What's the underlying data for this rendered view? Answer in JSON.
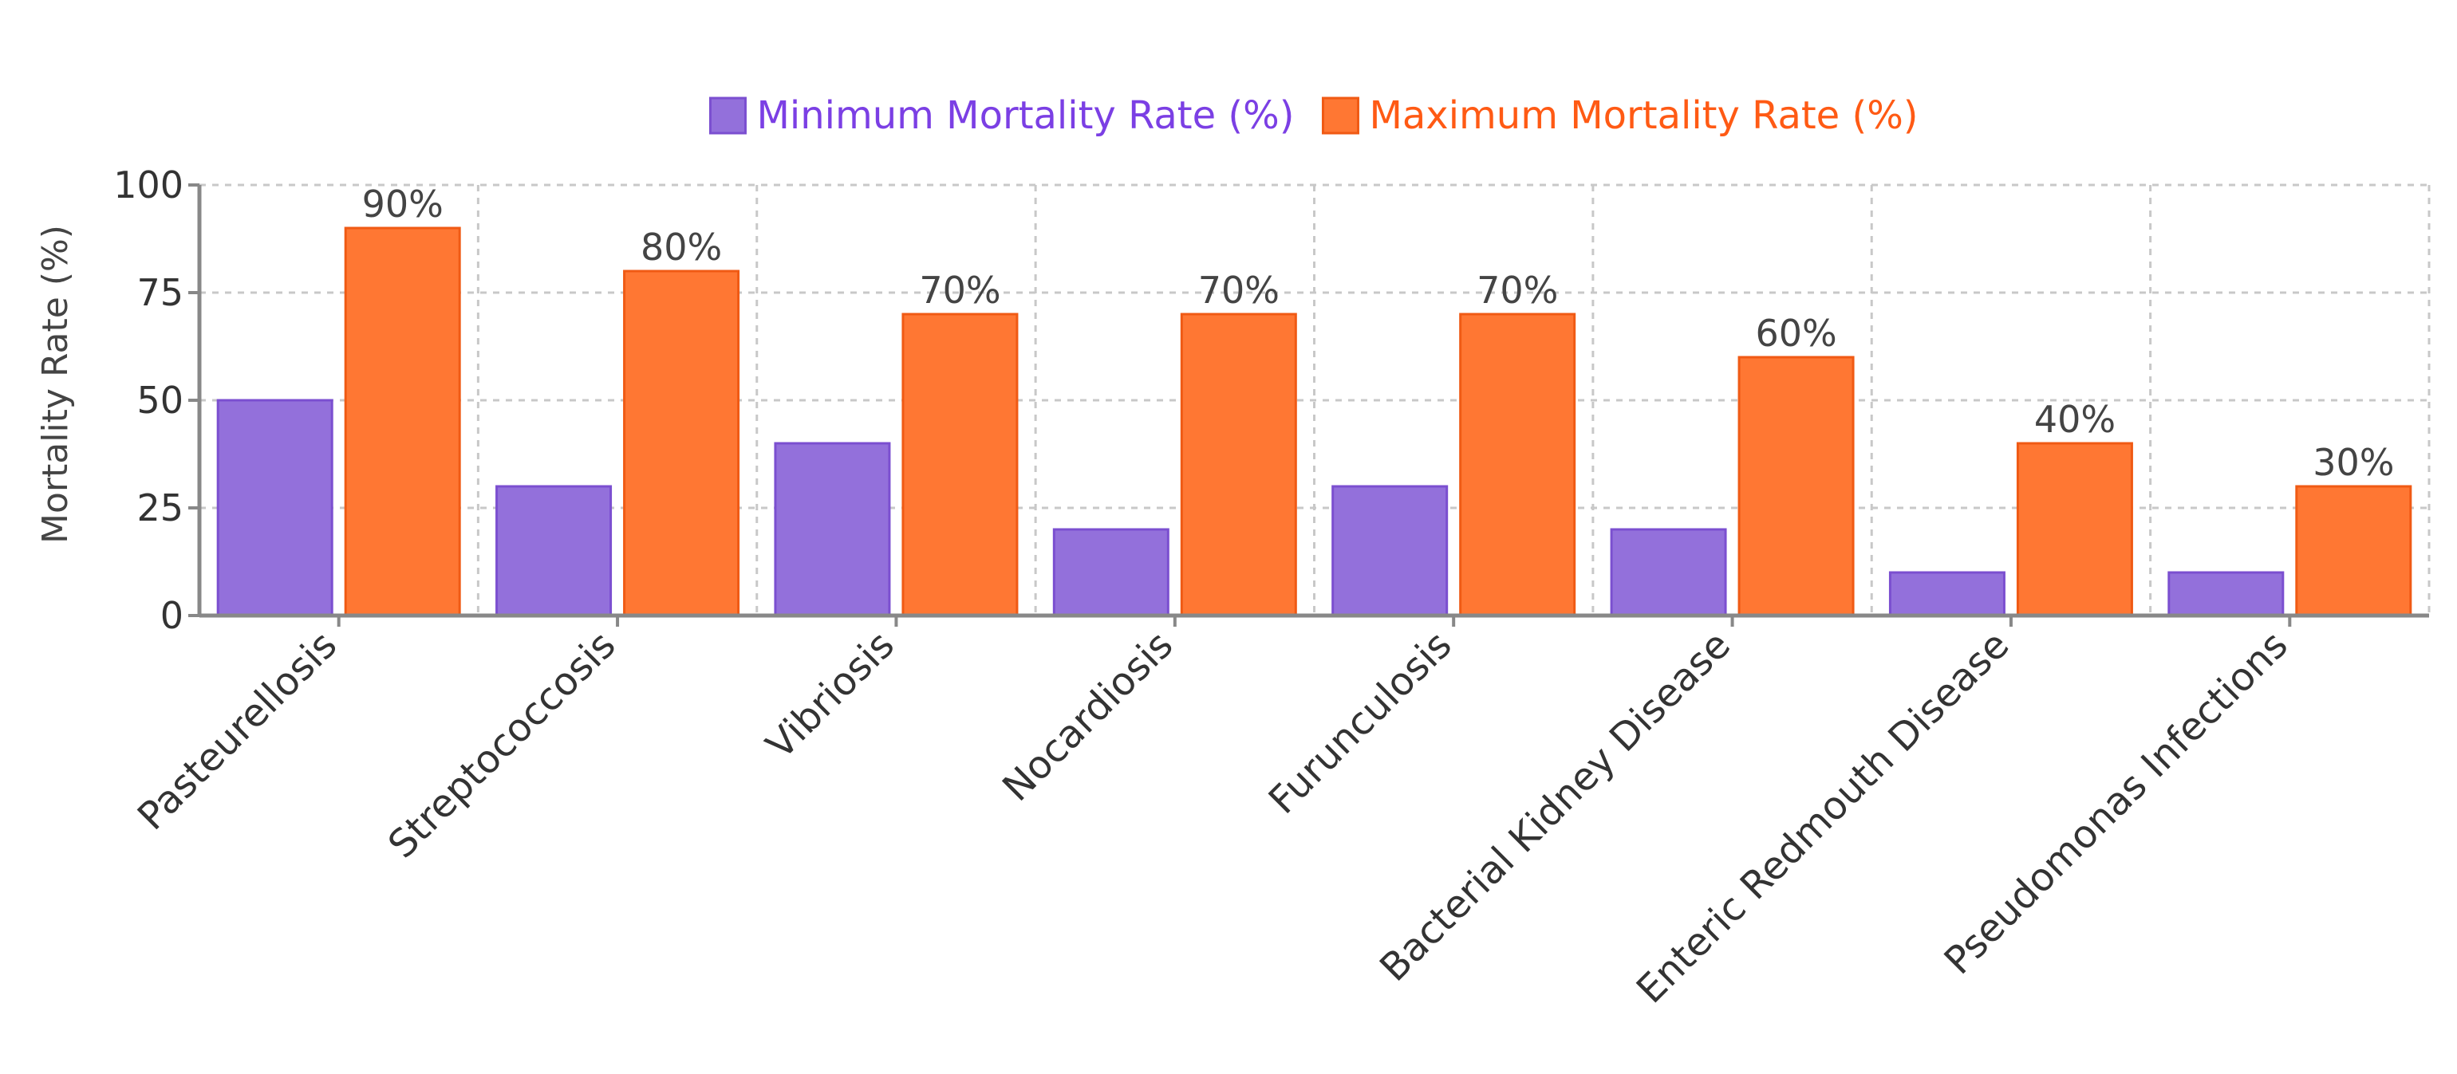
{
  "chart_data": {
    "type": "bar",
    "title": "",
    "xlabel": "",
    "ylabel": "Mortality Rate (%)",
    "ylim": [
      0,
      100
    ],
    "yticks": [
      0,
      25,
      50,
      75,
      100
    ],
    "grid": true,
    "legend_position": "top-center",
    "categories": [
      "Pasteurellosis",
      "Streptococcosis",
      "Vibriosis",
      "Nocardiosis",
      "Furunculosis",
      "Bacterial Kidney Disease",
      "Enteric Redmouth Disease",
      "Pseudomonas Infections"
    ],
    "series": [
      {
        "name": "Minimum Mortality Rate (%)",
        "values": [
          50,
          30,
          40,
          20,
          30,
          20,
          10,
          10
        ],
        "color": "#9370DB",
        "stroke": "#7B4FD0",
        "legend_text_color": "#7B3FE4",
        "show_labels": false
      },
      {
        "name": "Maximum Mortality Rate (%)",
        "values": [
          90,
          80,
          70,
          70,
          70,
          60,
          40,
          30
        ],
        "color": "#FF7733",
        "stroke": "#F05A14",
        "legend_text_color": "#FF5A14",
        "show_labels": true,
        "label_suffix": "%"
      }
    ]
  }
}
